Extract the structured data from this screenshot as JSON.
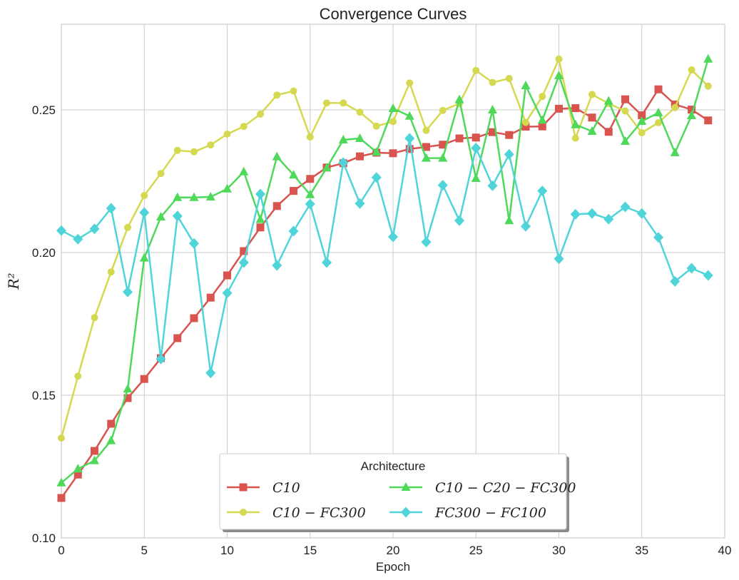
{
  "chart_data": {
    "type": "line",
    "title": "Convergence Curves",
    "xlabel": "Epoch",
    "ylabel": "R²",
    "xlim": [
      0,
      40
    ],
    "ylim": [
      0.1,
      0.28
    ],
    "xticks": [
      0,
      5,
      10,
      15,
      20,
      25,
      30,
      35,
      40
    ],
    "yticks": [
      0.1,
      0.15,
      0.2,
      0.25
    ],
    "ytick_labels": [
      "0.10",
      "0.15",
      "0.20",
      "0.25"
    ],
    "grid": true,
    "legend": {
      "title": "Architecture",
      "location": "lower-center",
      "columns": 2
    },
    "x": [
      0,
      1,
      2,
      3,
      4,
      5,
      6,
      7,
      8,
      9,
      10,
      11,
      12,
      13,
      14,
      15,
      16,
      17,
      18,
      19,
      20,
      21,
      22,
      23,
      24,
      25,
      26,
      27,
      28,
      29,
      30,
      31,
      32,
      33,
      34,
      35,
      36,
      37,
      38,
      39
    ],
    "series": [
      {
        "name": "C10",
        "legend_label": "C10",
        "color": "#d9534f",
        "marker": "square",
        "values": [
          0.114,
          0.1222,
          0.1305,
          0.14,
          0.149,
          0.1557,
          0.163,
          0.17,
          0.177,
          0.1842,
          0.192,
          0.2005,
          0.2088,
          0.2163,
          0.2216,
          0.2258,
          0.2298,
          0.2313,
          0.2337,
          0.235,
          0.2348,
          0.2363,
          0.237,
          0.2378,
          0.24,
          0.2403,
          0.2422,
          0.2412,
          0.2441,
          0.2442,
          0.2504,
          0.2506,
          0.2473,
          0.2423,
          0.2537,
          0.2481,
          0.2572,
          0.2519,
          0.2501,
          0.2463
        ]
      },
      {
        "name": "C10 − FC300",
        "legend_label": "C10 − FC300",
        "color": "#d4d94f",
        "marker": "circle",
        "values": [
          0.135,
          0.1567,
          0.1772,
          0.1932,
          0.2088,
          0.22,
          0.2277,
          0.2358,
          0.2353,
          0.2377,
          0.2415,
          0.2442,
          0.2485,
          0.2552,
          0.2566,
          0.2405,
          0.2524,
          0.2524,
          0.2492,
          0.2443,
          0.2459,
          0.2594,
          0.2428,
          0.2498,
          0.2522,
          0.2638,
          0.2596,
          0.261,
          0.2456,
          0.2547,
          0.2678,
          0.2401,
          0.2554,
          0.2522,
          0.2496,
          0.242,
          0.2455,
          0.2508,
          0.264,
          0.2583
        ]
      },
      {
        "name": "C10 − C20 − FC300",
        "legend_label": "C10 − C20 − FC300",
        "color": "#4fd95a",
        "marker": "triangle",
        "values": [
          0.1193,
          0.1242,
          0.1271,
          0.1341,
          0.1522,
          0.1981,
          0.2125,
          0.2193,
          0.2193,
          0.2195,
          0.2223,
          0.2283,
          0.2116,
          0.2336,
          0.2272,
          0.2203,
          0.2297,
          0.2395,
          0.24,
          0.2352,
          0.2505,
          0.2478,
          0.2331,
          0.2331,
          0.2536,
          0.226,
          0.25,
          0.2112,
          0.2585,
          0.2464,
          0.262,
          0.2448,
          0.2425,
          0.2531,
          0.239,
          0.246,
          0.249,
          0.235,
          0.248,
          0.2678
        ]
      },
      {
        "name": "FC300 − FC100",
        "legend_label": "FC300 − FC100",
        "color": "#4fd4d9",
        "marker": "diamond",
        "values": [
          0.2077,
          0.2047,
          0.2083,
          0.2155,
          0.1862,
          0.214,
          0.1627,
          0.2128,
          0.2032,
          0.1578,
          0.1858,
          0.1965,
          0.2205,
          0.1955,
          0.2075,
          0.217,
          0.1965,
          0.2315,
          0.2172,
          0.2263,
          0.2055,
          0.24,
          0.2037,
          0.2236,
          0.2112,
          0.2366,
          0.2234,
          0.2344,
          0.2092,
          0.2216,
          0.1978,
          0.2134,
          0.2137,
          0.2117,
          0.216,
          0.2137,
          0.2053,
          0.1899,
          0.1945,
          0.192
        ]
      }
    ]
  }
}
